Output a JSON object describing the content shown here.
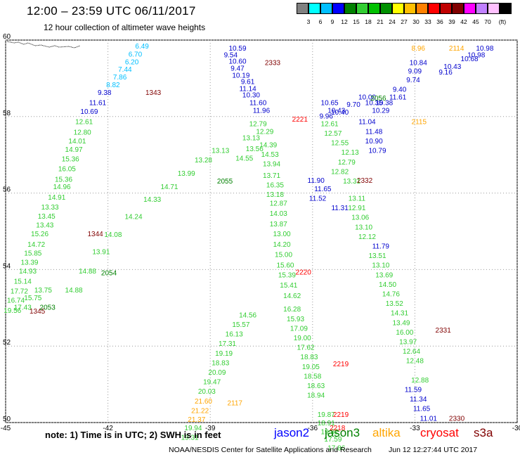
{
  "header": {
    "title": "12:00 – 23:59 UTC 06/11/2017",
    "subtitle": "12 hour collection of altimeter wave heights"
  },
  "colorbar": {
    "colors": [
      "#808080",
      "#00ffff",
      "#00bfff",
      "#0000ff",
      "#008000",
      "#32cd32",
      "#00c000",
      "#009000",
      "#ffff00",
      "#ffbf00",
      "#ff8000",
      "#ff0000",
      "#c00000",
      "#800000",
      "#ff00ff",
      "#c080ff",
      "#ffc0ff",
      "#000000"
    ],
    "labels": [
      "3",
      "6",
      "9",
      "12",
      "15",
      "18",
      "21",
      "24",
      "27",
      "30",
      "33",
      "36",
      "39",
      "42",
      "45",
      "70",
      "(ft)"
    ]
  },
  "chart_data": {
    "type": "scatter",
    "xlim": [
      -45,
      -30
    ],
    "ylim": [
      50,
      60
    ],
    "xticks": [
      "-45",
      "-42",
      "-39",
      "-36",
      "-33",
      "-30"
    ],
    "yticks": [
      "60",
      "58",
      "56",
      "54",
      "52",
      "50"
    ],
    "grid": true,
    "tracks": [
      {
        "satellite": "jason2",
        "color": "#00bfff",
        "label": "1343",
        "points": [
          [
            -41.0,
            59.78,
            "6.49"
          ],
          [
            -41.2,
            59.57,
            "6.70"
          ],
          [
            -41.3,
            59.37,
            "6.20"
          ],
          [
            -41.5,
            59.17,
            "7.44"
          ],
          [
            -41.65,
            58.97,
            "7.86"
          ],
          [
            -41.85,
            58.77,
            "8.82"
          ]
        ]
      },
      {
        "satellite": "jason2",
        "color": "#0000cd",
        "label": "",
        "points": [
          [
            -42.1,
            58.57,
            "9.38"
          ],
          [
            -42.3,
            58.3,
            "11.61"
          ],
          [
            -42.55,
            58.07,
            "10.69"
          ]
        ]
      },
      {
        "satellite": "jason3",
        "color": "#32cd32",
        "label": "1344",
        "points": [
          [
            -42.7,
            57.8,
            "12.61"
          ],
          [
            -42.75,
            57.53,
            "12.80"
          ],
          [
            -42.9,
            57.3,
            "14.01"
          ],
          [
            -43.0,
            57.08,
            "14.97"
          ],
          [
            -43.1,
            56.83,
            "15.36"
          ],
          [
            -43.2,
            56.57,
            "16.05"
          ],
          [
            -43.3,
            56.3,
            "15.36"
          ],
          [
            -43.35,
            56.1,
            "14.96"
          ],
          [
            -43.5,
            55.83,
            "14.91"
          ],
          [
            -43.7,
            55.57,
            "13.33"
          ],
          [
            -43.8,
            55.33,
            "13.45"
          ],
          [
            -43.85,
            55.1,
            "13.43"
          ],
          [
            -44.0,
            54.87,
            "15.26"
          ],
          [
            -44.1,
            54.6,
            "14.72"
          ],
          [
            -44.2,
            54.37,
            "15.85"
          ],
          [
            -44.3,
            54.13,
            "13.39"
          ],
          [
            -44.35,
            53.9,
            "14.93"
          ],
          [
            -44.5,
            53.63,
            "15.14"
          ],
          [
            -44.6,
            53.37,
            "17.72"
          ],
          [
            -44.7,
            53.13,
            "16.74"
          ],
          [
            -44.8,
            52.87,
            "19.56"
          ]
        ]
      },
      {
        "satellite": "jason3",
        "color": "#32cd32",
        "label": "2054",
        "points": [
          [
            -43.0,
            53.4,
            "14.88"
          ],
          [
            -42.6,
            53.9,
            "14.88"
          ],
          [
            -42.2,
            54.4,
            "13.91"
          ],
          [
            -41.85,
            54.85,
            "14.08"
          ],
          [
            -41.25,
            55.32,
            "14.24"
          ],
          [
            -40.7,
            55.77,
            "14.33"
          ],
          [
            -40.2,
            56.1,
            "14.71"
          ],
          [
            -39.7,
            56.45,
            "13.99"
          ],
          [
            -39.2,
            56.8,
            "13.28"
          ],
          [
            -38.7,
            57.05,
            "13.13"
          ]
        ]
      },
      {
        "satellite": "jason3",
        "color": "#32cd32",
        "label": "2053",
        "points": [
          [
            -44.5,
            52.95,
            "17.43"
          ],
          [
            -44.2,
            53.2,
            "15.75"
          ],
          [
            -43.9,
            53.4,
            "13.75"
          ]
        ]
      },
      {
        "satellite": "jason2",
        "color": "#0000cd",
        "label": "2333",
        "points": [
          [
            -38.2,
            59.72,
            "10.59"
          ],
          [
            -38.4,
            59.55,
            "9.54"
          ],
          [
            -38.2,
            59.38,
            "10.60"
          ],
          [
            -38.2,
            59.2,
            "9.47"
          ],
          [
            -38.1,
            59.02,
            "10.19"
          ],
          [
            -37.9,
            58.85,
            "9.61"
          ],
          [
            -37.9,
            58.67,
            "11.14"
          ],
          [
            -37.8,
            58.5,
            "10.30"
          ],
          [
            -37.6,
            58.3,
            "11.60"
          ],
          [
            -37.5,
            58.1,
            "11.96"
          ]
        ]
      },
      {
        "satellite": "jason3",
        "color": "#32cd32",
        "label": "2220",
        "points": [
          [
            -37.6,
            57.75,
            "12.79"
          ],
          [
            -37.4,
            57.55,
            "12.29"
          ],
          [
            -37.3,
            57.2,
            "14.39"
          ],
          [
            -37.25,
            56.95,
            "14.53"
          ],
          [
            -37.2,
            56.7,
            "13.94"
          ],
          [
            -37.2,
            56.4,
            "13.71"
          ],
          [
            -37.1,
            56.15,
            "16.35"
          ],
          [
            -37.1,
            55.9,
            "13.18"
          ],
          [
            -37.0,
            55.67,
            "12.87"
          ],
          [
            -37.0,
            55.4,
            "14.03"
          ],
          [
            -37.0,
            55.13,
            "13.87"
          ],
          [
            -36.9,
            54.87,
            "13.00"
          ],
          [
            -36.9,
            54.6,
            "14.20"
          ],
          [
            -36.85,
            54.33,
            "15.00"
          ],
          [
            -36.8,
            54.05,
            "15.60"
          ],
          [
            -36.75,
            53.8,
            "15.39"
          ],
          [
            -36.7,
            53.53,
            "15.41"
          ],
          [
            -36.6,
            53.25,
            "14.62"
          ]
        ]
      },
      {
        "satellite": "jason3",
        "color": "#32cd32",
        "label": "2219",
        "points": [
          [
            -36.6,
            52.9,
            "16.28"
          ],
          [
            -36.5,
            52.65,
            "15.93"
          ],
          [
            -36.4,
            52.4,
            "17.09"
          ],
          [
            -36.3,
            52.15,
            "19.00"
          ],
          [
            -36.2,
            51.9,
            "17.62"
          ],
          [
            -36.1,
            51.65,
            "18.83"
          ],
          [
            -36.05,
            51.4,
            "19.05"
          ],
          [
            -36.0,
            51.15,
            "18.58"
          ],
          [
            -35.9,
            50.9,
            "18.63"
          ],
          [
            -35.9,
            50.65,
            "18.94"
          ]
        ]
      },
      {
        "satellite": "jason3",
        "color": "#32cd32",
        "label": "2117",
        "points": [
          [
            -37.9,
            52.75,
            "14.56"
          ],
          [
            -38.1,
            52.5,
            "15.57"
          ],
          [
            -38.3,
            52.25,
            "16.13"
          ],
          [
            -38.5,
            52.0,
            "17.31"
          ],
          [
            -38.6,
            51.75,
            "19.19"
          ],
          [
            -38.7,
            51.5,
            "18.83"
          ],
          [
            -38.8,
            51.25,
            "20.09"
          ],
          [
            -38.95,
            51.0,
            "19.47"
          ],
          [
            -39.1,
            50.75,
            "20.03"
          ]
        ]
      },
      {
        "satellite": "altika",
        "color": "#ffa500",
        "label": "",
        "points": [
          [
            -39.2,
            50.5,
            "21.60"
          ],
          [
            -39.3,
            50.25,
            "21.22"
          ],
          [
            -39.4,
            50.02,
            "21.37"
          ]
        ]
      },
      {
        "satellite": "jason3",
        "color": "#32cd32",
        "label": "2218",
        "points": [
          [
            -39.5,
            49.8,
            "19.94"
          ],
          [
            -39.6,
            49.55,
            "19.31"
          ],
          [
            -35.6,
            50.15,
            "19.87"
          ],
          [
            -35.6,
            49.93,
            "18.91"
          ],
          [
            -35.5,
            49.7,
            "19.82"
          ],
          [
            -35.4,
            49.5,
            "17.59"
          ],
          [
            -35.3,
            49.27,
            "17.86"
          ]
        ]
      },
      {
        "satellite": "jason2",
        "color": "#0000cd",
        "label": "2332",
        "points": [
          [
            -35.9,
            56.27,
            "11.90"
          ],
          [
            -35.7,
            56.05,
            "11.65"
          ],
          [
            -35.85,
            55.8,
            "11.52"
          ],
          [
            -35.2,
            55.55,
            "11.31"
          ]
        ]
      },
      {
        "satellite": "jason3",
        "color": "#32cd32",
        "label": "2331",
        "points": [
          [
            -35.5,
            57.75,
            "12.61"
          ],
          [
            -35.4,
            57.5,
            "12.57"
          ],
          [
            -35.2,
            57.25,
            "12.55"
          ],
          [
            -34.9,
            57.0,
            "12.13"
          ],
          [
            -35.0,
            56.75,
            "12.79"
          ],
          [
            -35.2,
            56.5,
            "12.82"
          ],
          [
            -34.85,
            56.25,
            "13.31"
          ],
          [
            -34.7,
            55.8,
            "13.11"
          ],
          [
            -34.7,
            55.55,
            "12.91"
          ],
          [
            -34.6,
            55.3,
            "13.06"
          ],
          [
            -34.5,
            55.05,
            "13.10"
          ],
          [
            -34.4,
            54.8,
            "12.12"
          ],
          [
            -34.1,
            54.3,
            "13.51"
          ],
          [
            -34.0,
            54.05,
            "13.10"
          ],
          [
            -33.9,
            53.8,
            "13.69"
          ],
          [
            -33.8,
            53.55,
            "14.50"
          ],
          [
            -33.7,
            53.3,
            "14.76"
          ],
          [
            -33.6,
            53.05,
            "13.52"
          ],
          [
            -33.45,
            52.8,
            "14.31"
          ],
          [
            -33.4,
            52.55,
            "13.49"
          ],
          [
            -33.3,
            52.3,
            "16.00"
          ],
          [
            -33.2,
            52.05,
            "13.97"
          ],
          [
            -33.1,
            51.8,
            "12.64"
          ],
          [
            -33.0,
            51.55,
            "12.48"
          ],
          [
            -32.85,
            51.05,
            "12.88"
          ]
        ]
      },
      {
        "satellite": "jason2",
        "color": "#0000cd",
        "label": "2330",
        "points": [
          [
            -34.0,
            54.55,
            "11.79"
          ],
          [
            -33.05,
            50.8,
            "11.59"
          ],
          [
            -32.9,
            50.55,
            "11.34"
          ],
          [
            -32.8,
            50.3,
            "11.65"
          ],
          [
            -32.6,
            50.05,
            "11.01"
          ]
        ]
      },
      {
        "satellite": "jason2",
        "color": "#0000cd",
        "label": "2115",
        "points": [
          [
            -35.5,
            58.3,
            "10.65"
          ],
          [
            -35.3,
            58.1,
            "10.43"
          ],
          [
            -34.4,
            57.8,
            "11.04"
          ],
          [
            -34.2,
            57.55,
            "11.48"
          ],
          [
            -34.2,
            57.3,
            "10.90"
          ],
          [
            -34.1,
            57.05,
            "10.79"
          ],
          [
            -34.0,
            58.1,
            "10.29"
          ],
          [
            -33.9,
            58.3,
            "10.38"
          ]
        ]
      },
      {
        "satellite": "jason2",
        "color": "#0000cd",
        "label": "2114",
        "points": [
          [
            -32.9,
            59.35,
            "10.84"
          ],
          [
            -33.0,
            59.13,
            "9.09"
          ],
          [
            -33.05,
            58.9,
            "9.74"
          ],
          [
            -33.45,
            58.65,
            "9.40"
          ],
          [
            -33.5,
            58.45,
            "11.61"
          ],
          [
            -34.2,
            58.3,
            "10.35"
          ],
          [
            -34.4,
            58.45,
            "10.00"
          ],
          [
            -34.8,
            58.25,
            "9.70"
          ],
          [
            -35.2,
            58.05,
            "10.40"
          ],
          [
            -35.6,
            57.95,
            "9.96"
          ],
          [
            -31.2,
            59.55,
            "10.98"
          ],
          [
            -31.4,
            59.45,
            "10.68"
          ],
          [
            -31.9,
            59.25,
            "10.43"
          ],
          [
            -32.1,
            59.1,
            "9.16"
          ],
          [
            -30.95,
            59.72,
            "10.98"
          ]
        ]
      },
      {
        "satellite": "altika",
        "color": "#ffa500",
        "label": "",
        "points": [
          [
            -32.9,
            59.72,
            "8.96"
          ]
        ]
      },
      {
        "satellite": "jason3",
        "color": "#32cd32",
        "label": "2055",
        "points": [
          [
            -37.8,
            57.38,
            "13.13"
          ],
          [
            -38.0,
            56.85,
            "14.55"
          ],
          [
            -37.7,
            57.1,
            "13.56"
          ]
        ]
      }
    ],
    "labels": [
      {
        "text": "1343",
        "lon": -40.9,
        "lat": 58.57,
        "color": "#800000"
      },
      {
        "text": "1344",
        "lon": -42.6,
        "lat": 54.87,
        "color": "#800000"
      },
      {
        "text": "1345",
        "lon": -44.3,
        "lat": 52.85,
        "color": "#800000"
      },
      {
        "text": "2053",
        "lon": -44.0,
        "lat": 52.95,
        "color": "#008000"
      },
      {
        "text": "2054",
        "lon": -42.2,
        "lat": 53.85,
        "color": "#008000"
      },
      {
        "text": "2055",
        "lon": -38.8,
        "lat": 56.25,
        "color": "#008000"
      },
      {
        "text": "2056",
        "lon": -34.3,
        "lat": 58.42,
        "color": "#008000"
      },
      {
        "text": "2114",
        "lon": -32.0,
        "lat": 59.72,
        "color": "#ffa500"
      },
      {
        "text": "2115",
        "lon": -33.1,
        "lat": 57.8,
        "color": "#ffa500"
      },
      {
        "text": "2117",
        "lon": -38.5,
        "lat": 50.45,
        "color": "#ffa500"
      },
      {
        "text": "2221",
        "lon": -36.6,
        "lat": 57.87,
        "color": "#ff0000"
      },
      {
        "text": "2220",
        "lon": -36.5,
        "lat": 53.87,
        "color": "#ff0000"
      },
      {
        "text": "2219",
        "lon": -35.4,
        "lat": 51.47,
        "color": "#ff0000"
      },
      {
        "text": "2219",
        "lon": -35.4,
        "lat": 50.15,
        "color": "#ff0000"
      },
      {
        "text": "2218",
        "lon": -35.5,
        "lat": 49.8,
        "color": "#ff0000"
      },
      {
        "text": "2330",
        "lon": -32.0,
        "lat": 50.05,
        "color": "#800000"
      },
      {
        "text": "2331",
        "lon": -32.4,
        "lat": 52.35,
        "color": "#800000"
      },
      {
        "text": "2332",
        "lon": -34.7,
        "lat": 56.27,
        "color": "#800000"
      },
      {
        "text": "2333",
        "lon": -37.4,
        "lat": 59.35,
        "color": "#800000"
      }
    ]
  },
  "footer": {
    "note": "note: 1) Time is in UTC; 2) SWH is in feet",
    "satellites": [
      {
        "name": "jason2",
        "color": "#0000ff"
      },
      {
        "name": "jason3",
        "color": "#008000"
      },
      {
        "name": "altika",
        "color": "#ffa500"
      },
      {
        "name": "cryosat",
        "color": "#ff0000"
      },
      {
        "name": "s3a",
        "color": "#800000"
      }
    ],
    "credit": "NOAA/NESDIS Center for Satellite Applications and Research",
    "timestamp": "Jun 12 12:27:44 UTC 2017"
  }
}
